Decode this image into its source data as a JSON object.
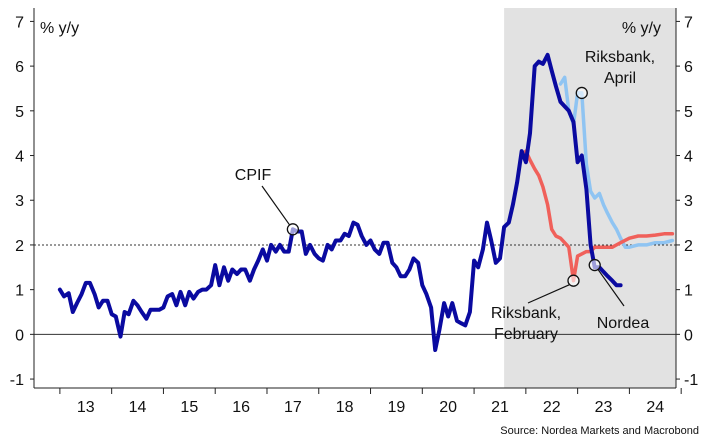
{
  "chart_data": {
    "type": "line",
    "ylabel_left": "% y/y",
    "ylabel_right": "% y/y",
    "ylim": [
      -1.2,
      7.3
    ],
    "xlim": [
      2012.5,
      2024.9
    ],
    "y_ticks": [
      "-1",
      "0",
      "1",
      "2",
      "3",
      "4",
      "5",
      "6",
      "7"
    ],
    "x_ticks": [
      "13",
      "14",
      "15",
      "16",
      "17",
      "18",
      "19",
      "20",
      "21",
      "22",
      "23",
      "24"
    ],
    "forecast_shade_start": 2021.58,
    "reference_line": 2,
    "annotations": [
      "CPIF",
      "Riksbank,\nApril",
      "Riksbank,\nFebruary",
      "Nordea"
    ],
    "source": "Source: Nordea Markets and Macrobond",
    "colors": {
      "cpif": "#0a0aa0",
      "riksbank_april": "#8fc4f2",
      "riksbank_february": "#f0605a",
      "shade": "#e2e2e2"
    },
    "series": [
      {
        "name": "CPIF",
        "points": [
          [
            2013.0,
            1.0
          ],
          [
            2013.08,
            0.85
          ],
          [
            2013.17,
            0.92
          ],
          [
            2013.25,
            0.5
          ],
          [
            2013.33,
            0.7
          ],
          [
            2013.42,
            0.9
          ],
          [
            2013.5,
            1.15
          ],
          [
            2013.58,
            1.15
          ],
          [
            2013.67,
            0.9
          ],
          [
            2013.75,
            0.6
          ],
          [
            2013.83,
            0.75
          ],
          [
            2013.92,
            0.75
          ],
          [
            2014.0,
            0.45
          ],
          [
            2014.08,
            0.4
          ],
          [
            2014.17,
            -0.05
          ],
          [
            2014.25,
            0.5
          ],
          [
            2014.33,
            0.45
          ],
          [
            2014.42,
            0.75
          ],
          [
            2014.5,
            0.65
          ],
          [
            2014.58,
            0.5
          ],
          [
            2014.67,
            0.35
          ],
          [
            2014.75,
            0.55
          ],
          [
            2014.83,
            0.55
          ],
          [
            2014.92,
            0.55
          ],
          [
            2015.0,
            0.6
          ],
          [
            2015.08,
            0.85
          ],
          [
            2015.17,
            0.9
          ],
          [
            2015.25,
            0.65
          ],
          [
            2015.33,
            0.95
          ],
          [
            2015.42,
            0.65
          ],
          [
            2015.5,
            0.95
          ],
          [
            2015.58,
            0.8
          ],
          [
            2015.67,
            0.95
          ],
          [
            2015.75,
            1.0
          ],
          [
            2015.83,
            1.0
          ],
          [
            2015.92,
            1.1
          ],
          [
            2016.0,
            1.55
          ],
          [
            2016.08,
            1.1
          ],
          [
            2016.17,
            1.5
          ],
          [
            2016.25,
            1.2
          ],
          [
            2016.33,
            1.45
          ],
          [
            2016.42,
            1.35
          ],
          [
            2016.5,
            1.45
          ],
          [
            2016.58,
            1.45
          ],
          [
            2016.67,
            1.2
          ],
          [
            2016.75,
            1.45
          ],
          [
            2016.83,
            1.65
          ],
          [
            2016.92,
            1.9
          ],
          [
            2017.0,
            1.65
          ],
          [
            2017.08,
            2.0
          ],
          [
            2017.17,
            1.85
          ],
          [
            2017.25,
            2.0
          ],
          [
            2017.33,
            1.85
          ],
          [
            2017.42,
            1.85
          ],
          [
            2017.5,
            2.35
          ],
          [
            2017.58,
            2.3
          ],
          [
            2017.67,
            2.3
          ],
          [
            2017.75,
            1.8
          ],
          [
            2017.83,
            2.0
          ],
          [
            2017.92,
            1.8
          ],
          [
            2018.0,
            1.7
          ],
          [
            2018.08,
            1.65
          ],
          [
            2018.17,
            2.0
          ],
          [
            2018.25,
            1.9
          ],
          [
            2018.33,
            2.1
          ],
          [
            2018.42,
            2.1
          ],
          [
            2018.5,
            2.25
          ],
          [
            2018.58,
            2.2
          ],
          [
            2018.67,
            2.5
          ],
          [
            2018.75,
            2.45
          ],
          [
            2018.83,
            2.2
          ],
          [
            2018.92,
            2.0
          ],
          [
            2019.0,
            2.1
          ],
          [
            2019.08,
            1.9
          ],
          [
            2019.17,
            1.8
          ],
          [
            2019.25,
            2.05
          ],
          [
            2019.33,
            2.05
          ],
          [
            2019.42,
            1.6
          ],
          [
            2019.5,
            1.5
          ],
          [
            2019.58,
            1.3
          ],
          [
            2019.67,
            1.3
          ],
          [
            2019.75,
            1.45
          ],
          [
            2019.83,
            1.7
          ],
          [
            2019.92,
            1.6
          ],
          [
            2020.0,
            1.1
          ],
          [
            2020.08,
            0.9
          ],
          [
            2020.17,
            0.6
          ],
          [
            2020.25,
            -0.35
          ],
          [
            2020.33,
            0.1
          ],
          [
            2020.42,
            0.7
          ],
          [
            2020.5,
            0.4
          ],
          [
            2020.58,
            0.7
          ],
          [
            2020.67,
            0.3
          ],
          [
            2020.75,
            0.25
          ],
          [
            2020.83,
            0.2
          ],
          [
            2020.92,
            0.5
          ],
          [
            2021.0,
            1.65
          ],
          [
            2021.08,
            1.5
          ],
          [
            2021.17,
            1.9
          ],
          [
            2021.25,
            2.5
          ],
          [
            2021.33,
            2.1
          ],
          [
            2021.42,
            1.6
          ],
          [
            2021.5,
            1.7
          ],
          [
            2021.58,
            2.4
          ],
          [
            2021.67,
            2.5
          ],
          [
            2021.75,
            2.9
          ],
          [
            2021.83,
            3.4
          ],
          [
            2021.92,
            4.1
          ],
          [
            2022.0,
            3.85
          ],
          [
            2022.08,
            4.5
          ],
          [
            2022.17,
            6.0
          ],
          [
            2022.25,
            6.1
          ],
          [
            2022.33,
            6.05
          ],
          [
            2022.42,
            6.25
          ],
          [
            2022.5,
            5.9
          ],
          [
            2022.58,
            5.55
          ],
          [
            2022.67,
            5.2
          ],
          [
            2022.75,
            5.1
          ],
          [
            2022.83,
            5.0
          ],
          [
            2022.92,
            4.75
          ],
          [
            2023.0,
            3.85
          ],
          [
            2023.08,
            4.0
          ],
          [
            2023.17,
            3.25
          ],
          [
            2023.25,
            2.0
          ],
          [
            2023.33,
            1.5
          ],
          [
            2023.42,
            1.5
          ],
          [
            2023.5,
            1.4
          ],
          [
            2023.58,
            1.3
          ],
          [
            2023.67,
            1.2
          ],
          [
            2023.75,
            1.1
          ],
          [
            2023.83,
            1.1
          ]
        ]
      },
      {
        "name": "Riksbank, April",
        "points": [
          [
            2022.67,
            5.6
          ],
          [
            2022.75,
            5.75
          ],
          [
            2022.83,
            5.0
          ],
          [
            2022.92,
            4.7
          ],
          [
            2023.0,
            5.4
          ],
          [
            2023.08,
            5.4
          ],
          [
            2023.17,
            3.8
          ],
          [
            2023.25,
            3.2
          ],
          [
            2023.33,
            3.05
          ],
          [
            2023.42,
            3.15
          ],
          [
            2023.5,
            2.9
          ],
          [
            2023.58,
            2.7
          ],
          [
            2023.67,
            2.5
          ],
          [
            2023.75,
            2.35
          ],
          [
            2023.83,
            2.15
          ],
          [
            2023.92,
            1.95
          ],
          [
            2024.0,
            1.95
          ],
          [
            2024.17,
            2.0
          ],
          [
            2024.33,
            2.0
          ],
          [
            2024.5,
            2.05
          ],
          [
            2024.67,
            2.05
          ],
          [
            2024.83,
            2.1
          ]
        ]
      },
      {
        "name": "Riksbank, February",
        "points": [
          [
            2021.92,
            4.0
          ],
          [
            2022.0,
            4.1
          ],
          [
            2022.08,
            3.9
          ],
          [
            2022.17,
            3.7
          ],
          [
            2022.25,
            3.55
          ],
          [
            2022.33,
            3.3
          ],
          [
            2022.42,
            2.9
          ],
          [
            2022.5,
            2.35
          ],
          [
            2022.58,
            2.2
          ],
          [
            2022.67,
            2.15
          ],
          [
            2022.75,
            2.05
          ],
          [
            2022.83,
            1.95
          ],
          [
            2022.92,
            1.2
          ],
          [
            2023.0,
            1.75
          ],
          [
            2023.08,
            1.8
          ],
          [
            2023.17,
            1.85
          ],
          [
            2023.25,
            1.85
          ],
          [
            2023.33,
            1.95
          ],
          [
            2023.5,
            1.95
          ],
          [
            2023.67,
            1.95
          ],
          [
            2023.75,
            2.0
          ],
          [
            2023.83,
            2.05
          ],
          [
            2024.0,
            2.15
          ],
          [
            2024.17,
            2.2
          ],
          [
            2024.33,
            2.2
          ],
          [
            2024.5,
            2.22
          ],
          [
            2024.67,
            2.25
          ],
          [
            2024.83,
            2.25
          ]
        ]
      }
    ]
  }
}
